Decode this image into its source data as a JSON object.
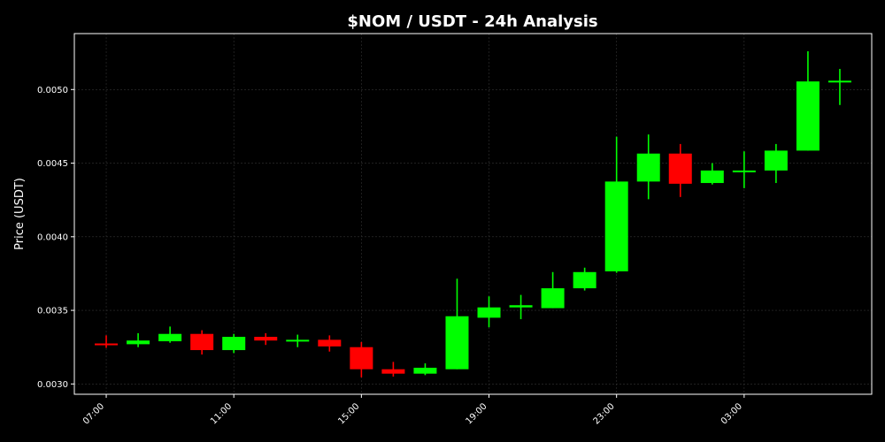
{
  "chart_data": {
    "type": "candlestick",
    "title": "$NOM / USDT - 24h Analysis",
    "ylabel": "Price (USDT)",
    "xlabel": "",
    "ylim": [
      0.00293,
      0.00538
    ],
    "grid": true,
    "y_ticks": [
      "0.0030",
      "0.0035",
      "0.0040",
      "0.0045",
      "0.0050"
    ],
    "y_tick_values": [
      0.003,
      0.0035,
      0.004,
      0.0045,
      0.005
    ],
    "x_ticks": [
      "07:00",
      "11:00",
      "15:00",
      "19:00",
      "23:00",
      "03:00"
    ],
    "x_tick_hours": [
      0,
      4,
      8,
      12,
      16,
      20
    ],
    "x_hour_range": [
      -1,
      24
    ],
    "colors": {
      "up": "#00ff00",
      "down": "#ff0000",
      "background": "#000000",
      "grid": "#333333",
      "axes": "#ffffff"
    },
    "candles": [
      {
        "time": "07:00",
        "open": 0.003275,
        "high": 0.00333,
        "low": 0.003245,
        "close": 0.00327
      },
      {
        "time": "08:00",
        "open": 0.00327,
        "high": 0.003345,
        "low": 0.00325,
        "close": 0.003295
      },
      {
        "time": "09:00",
        "open": 0.00329,
        "high": 0.00339,
        "low": 0.00328,
        "close": 0.00334
      },
      {
        "time": "10:00",
        "open": 0.00334,
        "high": 0.003365,
        "low": 0.0032,
        "close": 0.00323
      },
      {
        "time": "11:00",
        "open": 0.00323,
        "high": 0.00334,
        "low": 0.00321,
        "close": 0.00332
      },
      {
        "time": "12:00",
        "open": 0.00332,
        "high": 0.003345,
        "low": 0.003265,
        "close": 0.003295
      },
      {
        "time": "13:00",
        "open": 0.003295,
        "high": 0.003335,
        "low": 0.00325,
        "close": 0.0033
      },
      {
        "time": "14:00",
        "open": 0.0033,
        "high": 0.00333,
        "low": 0.00322,
        "close": 0.003255
      },
      {
        "time": "15:00",
        "open": 0.00325,
        "high": 0.003285,
        "low": 0.003045,
        "close": 0.0031
      },
      {
        "time": "16:00",
        "open": 0.0031,
        "high": 0.00315,
        "low": 0.00305,
        "close": 0.00307
      },
      {
        "time": "17:00",
        "open": 0.00307,
        "high": 0.00314,
        "low": 0.00306,
        "close": 0.00311
      },
      {
        "time": "18:00",
        "open": 0.0031,
        "high": 0.003715,
        "low": 0.0031,
        "close": 0.00346
      },
      {
        "time": "19:00",
        "open": 0.00345,
        "high": 0.003595,
        "low": 0.003385,
        "close": 0.00352
      },
      {
        "time": "20:00",
        "open": 0.00352,
        "high": 0.003605,
        "low": 0.00344,
        "close": 0.003535
      },
      {
        "time": "21:00",
        "open": 0.003515,
        "high": 0.00376,
        "low": 0.003515,
        "close": 0.00365
      },
      {
        "time": "22:00",
        "open": 0.00365,
        "high": 0.00379,
        "low": 0.003635,
        "close": 0.00376
      },
      {
        "time": "23:00",
        "open": 0.003765,
        "high": 0.00468,
        "low": 0.003755,
        "close": 0.004375
      },
      {
        "time": "00:00",
        "open": 0.004375,
        "high": 0.004695,
        "low": 0.004255,
        "close": 0.004565
      },
      {
        "time": "01:00",
        "open": 0.004565,
        "high": 0.00463,
        "low": 0.00427,
        "close": 0.00436
      },
      {
        "time": "02:00",
        "open": 0.004365,
        "high": 0.0045,
        "low": 0.004355,
        "close": 0.00445
      },
      {
        "time": "03:00",
        "open": 0.00444,
        "high": 0.00458,
        "low": 0.00433,
        "close": 0.00445
      },
      {
        "time": "04:00",
        "open": 0.00445,
        "high": 0.00463,
        "low": 0.004365,
        "close": 0.004585
      },
      {
        "time": "05:00",
        "open": 0.004585,
        "high": 0.00526,
        "low": 0.004585,
        "close": 0.005055
      },
      {
        "time": "06:00",
        "open": 0.00505,
        "high": 0.00514,
        "low": 0.004895,
        "close": 0.00506
      }
    ]
  }
}
